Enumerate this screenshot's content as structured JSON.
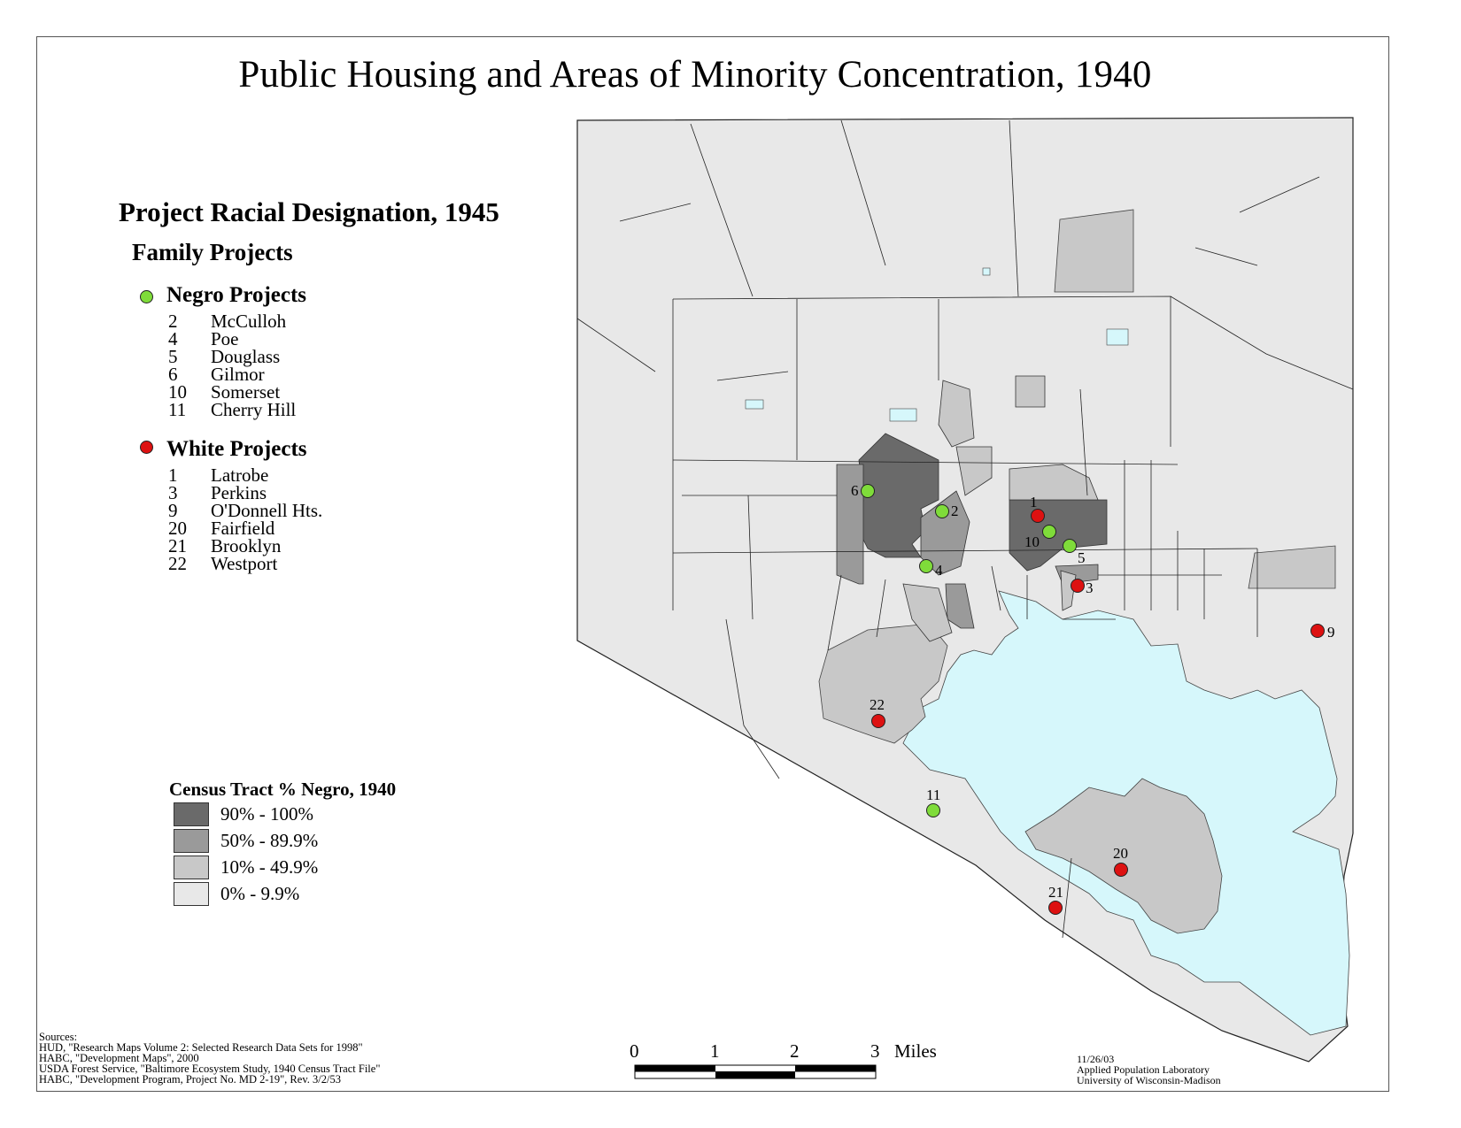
{
  "title": "Public Housing and Areas of Minority Concentration, 1940",
  "legend": {
    "heading": "Project Racial Designation, 1945",
    "subheading": "Family Projects",
    "groups": [
      {
        "label": "Negro Projects",
        "color": "#7fdc3a",
        "projects": [
          {
            "num": "2",
            "name": "McCulloh"
          },
          {
            "num": "4",
            "name": "Poe"
          },
          {
            "num": "5",
            "name": "Douglass"
          },
          {
            "num": "6",
            "name": "Gilmor"
          },
          {
            "num": "10",
            "name": "Somerset"
          },
          {
            "num": "11",
            "name": "Cherry Hill"
          }
        ]
      },
      {
        "label": "White Projects",
        "color": "#dd1111",
        "projects": [
          {
            "num": "1",
            "name": "Latrobe"
          },
          {
            "num": "3",
            "name": "Perkins"
          },
          {
            "num": "9",
            "name": "O'Donnell Hts."
          },
          {
            "num": "20",
            "name": "Fairfield"
          },
          {
            "num": "21",
            "name": "Brooklyn"
          },
          {
            "num": "22",
            "name": "Westport"
          }
        ]
      }
    ]
  },
  "census": {
    "title": "Census Tract % Negro, 1940",
    "classes": [
      {
        "label": "90% - 100%",
        "color": "#6a6a6a"
      },
      {
        "label": "50% - 89.9%",
        "color": "#9a9a9a"
      },
      {
        "label": "10% - 49.9%",
        "color": "#c8c8c8"
      },
      {
        "label": "0% - 9.9%",
        "color": "#e8e8e8"
      }
    ]
  },
  "water_color": "#d6f7fb",
  "map_points": {
    "labels": [
      "1",
      "2",
      "3",
      "4",
      "5",
      "6",
      "9",
      "10",
      "11",
      "20",
      "21",
      "22"
    ]
  },
  "scale": {
    "ticks": [
      "0",
      "1",
      "2",
      "3"
    ],
    "unit": "Miles"
  },
  "sources": {
    "heading": "Sources:",
    "lines": [
      "HUD, \"Research Maps Volume 2: Selected Research Data Sets for 1998\"",
      "HABC, \"Development Maps\", 2000",
      "USDA Forest Service, \"Baltimore Ecosystem Study, 1940 Census Tract File\"",
      "HABC, \"Development Program, Project No. MD 2-19\", Rev. 3/2/53"
    ]
  },
  "credit": {
    "date": "11/26/03",
    "org": "Applied Population Laboratory",
    "univ": "University of Wisconsin-Madison"
  }
}
